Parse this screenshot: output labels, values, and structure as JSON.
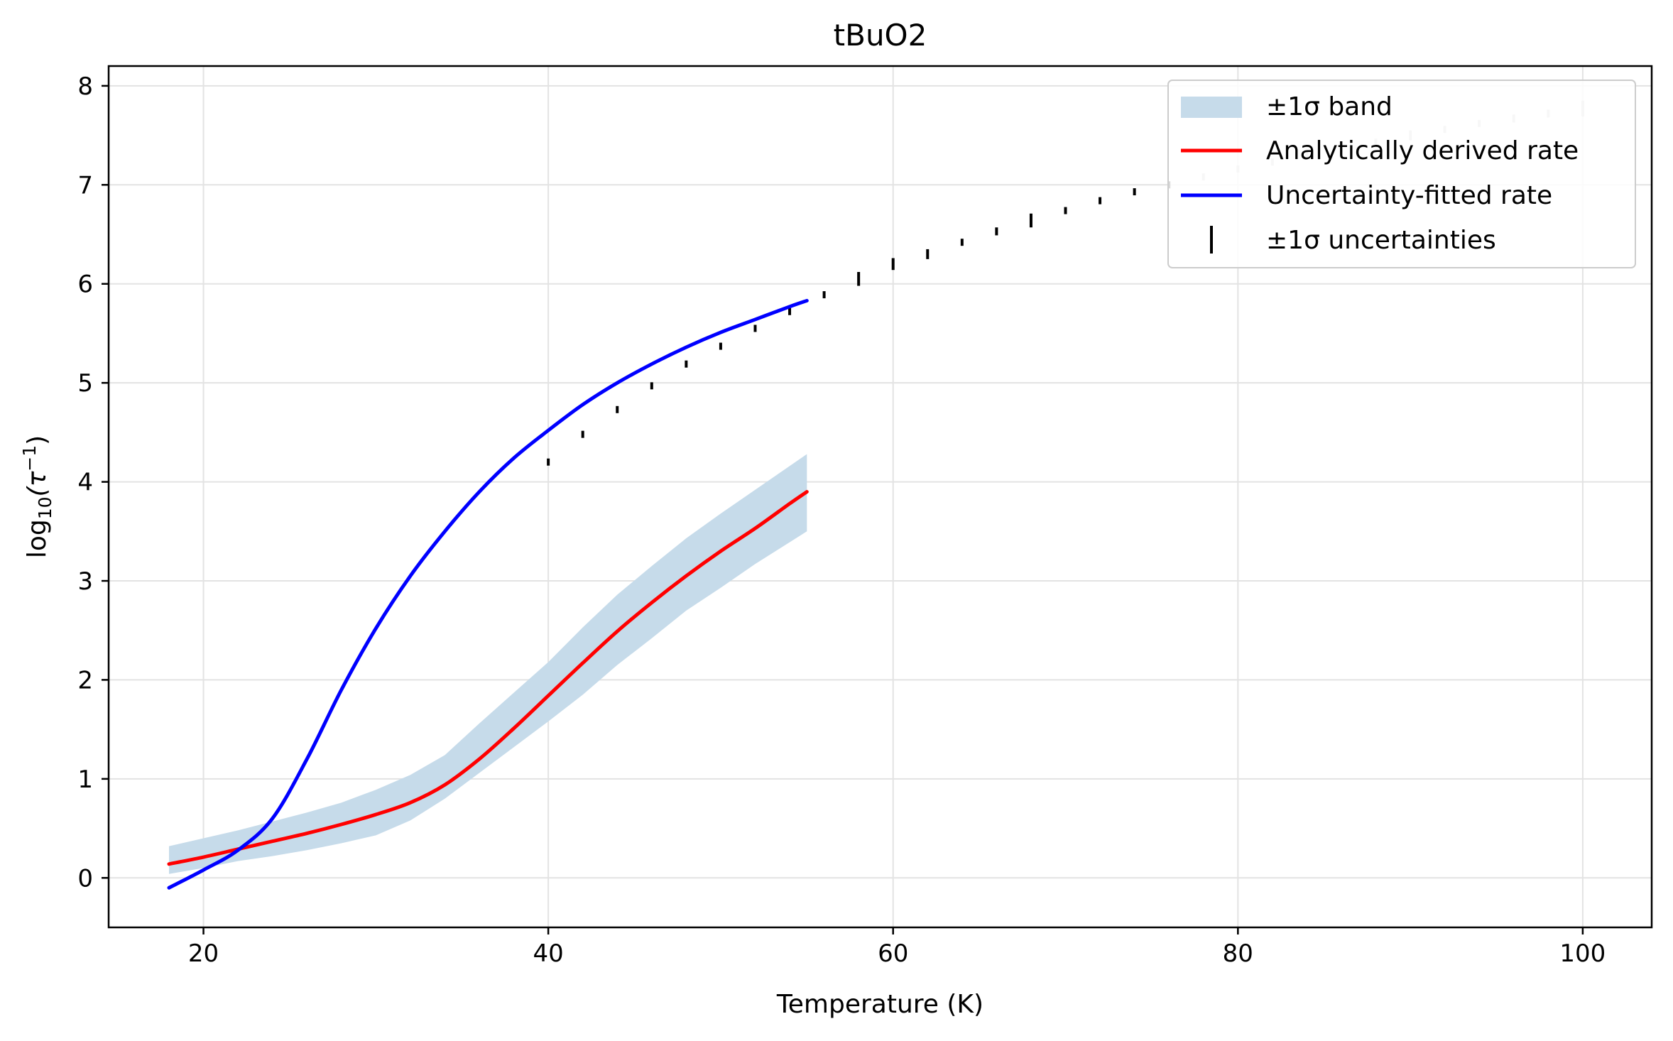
{
  "chart_data": {
    "type": "line",
    "title": "tBuO2",
    "xlabel": "Temperature (K)",
    "ylabel_prefix": "log",
    "ylabel_sub": "10",
    "ylabel_body": "(τ",
    "ylabel_sup": "−1",
    "ylabel_close": ")",
    "xlim": [
      14.5,
      104
    ],
    "ylim": [
      -0.5,
      8.2
    ],
    "x_ticks": [
      20,
      40,
      60,
      80,
      100
    ],
    "y_ticks": [
      0,
      1,
      2,
      3,
      4,
      5,
      6,
      7,
      8
    ],
    "grid": true,
    "legend": {
      "placement": "top-right",
      "entries": [
        {
          "label": "±1σ band",
          "kind": "patch",
          "color": "#c6dbea"
        },
        {
          "label": "Analytically derived rate",
          "kind": "line",
          "color": "#ff0000"
        },
        {
          "label": "Uncertainty-fitted rate",
          "kind": "line",
          "color": "#0000ff"
        },
        {
          "label": "±1σ uncertainties",
          "kind": "errorbar",
          "color": "#000000"
        }
      ]
    },
    "band": {
      "color": "#c6dbea",
      "x": [
        18,
        20,
        22,
        24,
        26,
        28,
        30,
        32,
        34,
        36,
        38,
        40,
        42,
        44,
        46,
        48,
        50,
        52,
        54,
        55
      ],
      "lower": [
        0.04,
        0.1,
        0.17,
        0.22,
        0.28,
        0.35,
        0.43,
        0.58,
        0.8,
        1.06,
        1.32,
        1.58,
        1.85,
        2.15,
        2.42,
        2.7,
        2.93,
        3.17,
        3.39,
        3.5
      ],
      "upper": [
        0.32,
        0.4,
        0.48,
        0.57,
        0.66,
        0.76,
        0.89,
        1.04,
        1.24,
        1.56,
        1.87,
        2.18,
        2.53,
        2.86,
        3.15,
        3.43,
        3.68,
        3.92,
        4.16,
        4.28
      ]
    },
    "series": [
      {
        "name": "Analytically derived rate",
        "color": "#ff0000",
        "x": [
          18,
          20,
          22,
          24,
          26,
          28,
          30,
          32,
          34,
          36,
          38,
          40,
          42,
          44,
          46,
          48,
          50,
          52,
          54,
          55
        ],
        "y": [
          0.14,
          0.21,
          0.29,
          0.37,
          0.45,
          0.54,
          0.64,
          0.76,
          0.94,
          1.2,
          1.51,
          1.84,
          2.17,
          2.49,
          2.78,
          3.05,
          3.3,
          3.53,
          3.78,
          3.9
        ]
      },
      {
        "name": "Uncertainty-fitted rate",
        "color": "#0000ff",
        "x": [
          18,
          20,
          22,
          24,
          26,
          28,
          30,
          32,
          34,
          36,
          38,
          40,
          42,
          44,
          46,
          48,
          50,
          52,
          54,
          55
        ],
        "y": [
          -0.1,
          0.08,
          0.28,
          0.6,
          1.2,
          1.9,
          2.52,
          3.05,
          3.5,
          3.9,
          4.24,
          4.52,
          4.78,
          5.0,
          5.19,
          5.36,
          5.51,
          5.64,
          5.77,
          5.83
        ]
      }
    ],
    "errorbars": {
      "name": "±1σ uncertainties",
      "color": "#000000",
      "points": [
        {
          "x": 40,
          "y": 4.2,
          "err": 0.03
        },
        {
          "x": 42,
          "y": 4.48,
          "err": 0.03
        },
        {
          "x": 44,
          "y": 4.73,
          "err": 0.03
        },
        {
          "x": 46,
          "y": 4.97,
          "err": 0.03
        },
        {
          "x": 48,
          "y": 5.19,
          "err": 0.03
        },
        {
          "x": 50,
          "y": 5.37,
          "err": 0.03
        },
        {
          "x": 52,
          "y": 5.55,
          "err": 0.03
        },
        {
          "x": 54,
          "y": 5.72,
          "err": 0.03
        },
        {
          "x": 56,
          "y": 5.89,
          "err": 0.03
        },
        {
          "x": 58,
          "y": 6.05,
          "err": 0.07
        },
        {
          "x": 60,
          "y": 6.2,
          "err": 0.06
        },
        {
          "x": 62,
          "y": 6.3,
          "err": 0.05
        },
        {
          "x": 64,
          "y": 6.42,
          "err": 0.02
        },
        {
          "x": 66,
          "y": 6.53,
          "err": 0.04
        },
        {
          "x": 68,
          "y": 6.64,
          "err": 0.07
        },
        {
          "x": 70,
          "y": 6.74,
          "err": 0.03
        },
        {
          "x": 72,
          "y": 6.84,
          "err": 0.03
        },
        {
          "x": 74,
          "y": 6.93,
          "err": 0.02
        },
        {
          "x": 76,
          "y": 7.0,
          "err": 0.02
        },
        {
          "x": 78,
          "y": 7.08,
          "err": 0.03
        },
        {
          "x": 80,
          "y": 7.16,
          "err": 0.03
        },
        {
          "x": 82,
          "y": 7.23,
          "err": 0.03
        },
        {
          "x": 84,
          "y": 7.3,
          "err": 0.03
        },
        {
          "x": 86,
          "y": 7.37,
          "err": 0.03
        },
        {
          "x": 88,
          "y": 7.43,
          "err": 0.03
        },
        {
          "x": 90,
          "y": 7.5,
          "err": 0.05
        },
        {
          "x": 92,
          "y": 7.56,
          "err": 0.03
        },
        {
          "x": 94,
          "y": 7.62,
          "err": 0.03
        },
        {
          "x": 96,
          "y": 7.67,
          "err": 0.04
        },
        {
          "x": 98,
          "y": 7.72,
          "err": 0.04
        },
        {
          "x": 100,
          "y": 7.77,
          "err": 0.08
        }
      ]
    }
  }
}
